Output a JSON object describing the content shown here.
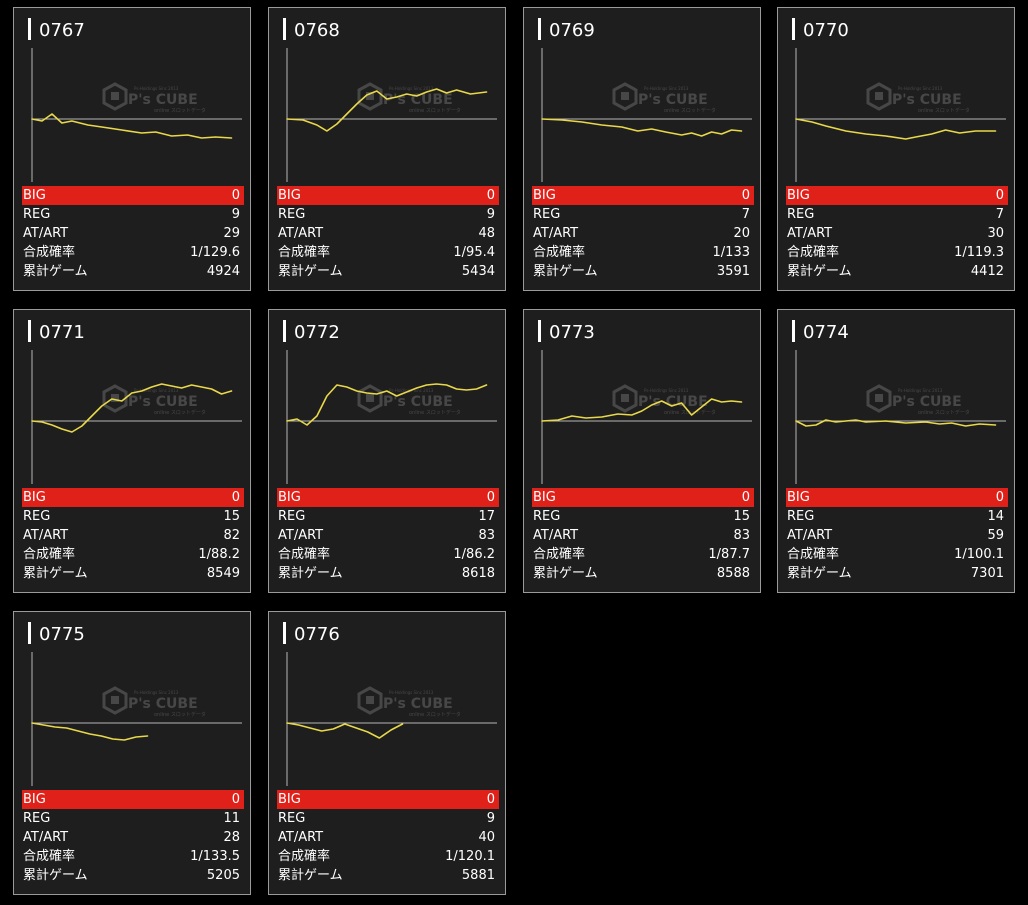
{
  "labels": {
    "big": "BIG",
    "reg": "REG",
    "at_art": "AT/ART",
    "prob": "合成確率",
    "games": "累計ゲーム"
  },
  "watermark": {
    "brand": "P's CUBE",
    "line_top": "Ps-Holdings Sinc 2013",
    "line_bottom": "online スロットデータ"
  },
  "colors": {
    "card_bg": "#1e1e1e",
    "line": "#e8d84a",
    "big_bar": "#e0211a"
  },
  "machines": [
    {
      "id": "0767",
      "big": "0",
      "reg": "9",
      "at_art": "29",
      "prob": "1/129.6",
      "games": "4924",
      "trend": [
        [
          0,
          0
        ],
        [
          0.05,
          0.02
        ],
        [
          0.1,
          -0.05
        ],
        [
          0.15,
          0.04
        ],
        [
          0.2,
          0.02
        ],
        [
          0.28,
          0.06
        ],
        [
          0.35,
          0.08
        ],
        [
          0.45,
          0.11
        ],
        [
          0.55,
          0.14
        ],
        [
          0.62,
          0.13
        ],
        [
          0.7,
          0.17
        ],
        [
          0.78,
          0.16
        ],
        [
          0.85,
          0.19
        ],
        [
          0.92,
          0.18
        ],
        [
          1,
          0.19
        ]
      ]
    },
    {
      "id": "0768",
      "big": "0",
      "reg": "9",
      "at_art": "48",
      "prob": "1/95.4",
      "games": "5434",
      "trend": [
        [
          0,
          0
        ],
        [
          0.08,
          0.01
        ],
        [
          0.15,
          0.06
        ],
        [
          0.2,
          0.12
        ],
        [
          0.25,
          0.05
        ],
        [
          0.3,
          -0.05
        ],
        [
          0.35,
          -0.15
        ],
        [
          0.4,
          -0.24
        ],
        [
          0.45,
          -0.28
        ],
        [
          0.5,
          -0.2
        ],
        [
          0.55,
          -0.22
        ],
        [
          0.6,
          -0.25
        ],
        [
          0.65,
          -0.23
        ],
        [
          0.7,
          -0.27
        ],
        [
          0.75,
          -0.3
        ],
        [
          0.8,
          -0.26
        ],
        [
          0.85,
          -0.29
        ],
        [
          0.92,
          -0.25
        ],
        [
          1,
          -0.27
        ]
      ]
    },
    {
      "id": "0769",
      "big": "0",
      "reg": "7",
      "at_art": "20",
      "prob": "1/133",
      "games": "3591",
      "trend": [
        [
          0,
          0
        ],
        [
          0.1,
          0.01
        ],
        [
          0.2,
          0.03
        ],
        [
          0.3,
          0.06
        ],
        [
          0.4,
          0.08
        ],
        [
          0.48,
          0.12
        ],
        [
          0.55,
          0.1
        ],
        [
          0.62,
          0.13
        ],
        [
          0.7,
          0.16
        ],
        [
          0.75,
          0.14
        ],
        [
          0.8,
          0.17
        ],
        [
          0.85,
          0.13
        ],
        [
          0.9,
          0.15
        ],
        [
          0.95,
          0.11
        ],
        [
          1,
          0.12
        ]
      ]
    },
    {
      "id": "0770",
      "big": "0",
      "reg": "7",
      "at_art": "30",
      "prob": "1/119.3",
      "games": "4412",
      "trend": [
        [
          0,
          0
        ],
        [
          0.08,
          0.03
        ],
        [
          0.15,
          0.07
        ],
        [
          0.25,
          0.12
        ],
        [
          0.35,
          0.15
        ],
        [
          0.45,
          0.17
        ],
        [
          0.55,
          0.2
        ],
        [
          0.6,
          0.18
        ],
        [
          0.68,
          0.15
        ],
        [
          0.75,
          0.11
        ],
        [
          0.82,
          0.14
        ],
        [
          0.9,
          0.12
        ],
        [
          1,
          0.12
        ]
      ]
    },
    {
      "id": "0771",
      "big": "0",
      "reg": "15",
      "at_art": "82",
      "prob": "1/88.2",
      "games": "8549",
      "trend": [
        [
          0,
          0
        ],
        [
          0.05,
          0.01
        ],
        [
          0.1,
          0.04
        ],
        [
          0.15,
          0.08
        ],
        [
          0.2,
          0.11
        ],
        [
          0.25,
          0.05
        ],
        [
          0.3,
          -0.05
        ],
        [
          0.35,
          -0.15
        ],
        [
          0.4,
          -0.22
        ],
        [
          0.45,
          -0.2
        ],
        [
          0.5,
          -0.28
        ],
        [
          0.55,
          -0.3
        ],
        [
          0.6,
          -0.34
        ],
        [
          0.65,
          -0.37
        ],
        [
          0.7,
          -0.35
        ],
        [
          0.75,
          -0.33
        ],
        [
          0.8,
          -0.36
        ],
        [
          0.85,
          -0.34
        ],
        [
          0.9,
          -0.32
        ],
        [
          0.95,
          -0.27
        ],
        [
          1,
          -0.3
        ]
      ]
    },
    {
      "id": "0772",
      "big": "0",
      "reg": "17",
      "at_art": "83",
      "prob": "1/86.2",
      "games": "8618",
      "trend": [
        [
          0,
          0
        ],
        [
          0.05,
          -0.02
        ],
        [
          0.1,
          0.04
        ],
        [
          0.15,
          -0.05
        ],
        [
          0.2,
          -0.25
        ],
        [
          0.25,
          -0.36
        ],
        [
          0.3,
          -0.34
        ],
        [
          0.35,
          -0.3
        ],
        [
          0.4,
          -0.28
        ],
        [
          0.45,
          -0.27
        ],
        [
          0.5,
          -0.3
        ],
        [
          0.55,
          -0.25
        ],
        [
          0.6,
          -0.29
        ],
        [
          0.65,
          -0.33
        ],
        [
          0.7,
          -0.36
        ],
        [
          0.75,
          -0.37
        ],
        [
          0.8,
          -0.36
        ],
        [
          0.85,
          -0.32
        ],
        [
          0.9,
          -0.31
        ],
        [
          0.95,
          -0.32
        ],
        [
          1,
          -0.36
        ]
      ]
    },
    {
      "id": "0773",
      "big": "0",
      "reg": "15",
      "at_art": "83",
      "prob": "1/87.7",
      "games": "8588",
      "trend": [
        [
          0,
          0
        ],
        [
          0.08,
          -0.01
        ],
        [
          0.15,
          -0.05
        ],
        [
          0.22,
          -0.03
        ],
        [
          0.3,
          -0.04
        ],
        [
          0.38,
          -0.07
        ],
        [
          0.45,
          -0.06
        ],
        [
          0.5,
          -0.1
        ],
        [
          0.55,
          -0.16
        ],
        [
          0.6,
          -0.2
        ],
        [
          0.65,
          -0.15
        ],
        [
          0.7,
          -0.18
        ],
        [
          0.75,
          -0.06
        ],
        [
          0.8,
          -0.14
        ],
        [
          0.85,
          -0.22
        ],
        [
          0.9,
          -0.19
        ],
        [
          0.95,
          -0.2
        ],
        [
          1,
          -0.19
        ]
      ]
    },
    {
      "id": "0774",
      "big": "0",
      "reg": "14",
      "at_art": "59",
      "prob": "1/100.1",
      "games": "7301",
      "trend": [
        [
          0,
          0
        ],
        [
          0.05,
          0.05
        ],
        [
          0.1,
          0.04
        ],
        [
          0.15,
          -0.01
        ],
        [
          0.2,
          0.01
        ],
        [
          0.3,
          -0.01
        ],
        [
          0.35,
          0.01
        ],
        [
          0.45,
          0.0
        ],
        [
          0.55,
          0.02
        ],
        [
          0.65,
          0.01
        ],
        [
          0.72,
          0.03
        ],
        [
          0.78,
          0.02
        ],
        [
          0.85,
          0.05
        ],
        [
          0.92,
          0.03
        ],
        [
          1,
          0.04
        ]
      ]
    },
    {
      "id": "0775",
      "big": "0",
      "reg": "11",
      "at_art": "28",
      "prob": "1/133.5",
      "games": "5205",
      "trend": [
        [
          0,
          0
        ],
        [
          0.1,
          0.02
        ],
        [
          0.2,
          0.04
        ],
        [
          0.3,
          0.05
        ],
        [
          0.4,
          0.08
        ],
        [
          0.5,
          0.11
        ],
        [
          0.6,
          0.13
        ],
        [
          0.7,
          0.16
        ],
        [
          0.8,
          0.17
        ],
        [
          0.9,
          0.14
        ],
        [
          1,
          0.13
        ]
      ]
    },
    {
      "id": "0776",
      "big": "0",
      "reg": "9",
      "at_art": "40",
      "prob": "1/120.1",
      "games": "5881",
      "trend": [
        [
          0,
          0
        ],
        [
          0.1,
          0.02
        ],
        [
          0.2,
          0.05
        ],
        [
          0.3,
          0.08
        ],
        [
          0.4,
          0.06
        ],
        [
          0.5,
          0.01
        ],
        [
          0.6,
          0.05
        ],
        [
          0.7,
          0.09
        ],
        [
          0.8,
          0.15
        ],
        [
          0.9,
          0.07
        ],
        [
          1,
          0.01
        ]
      ]
    }
  ]
}
